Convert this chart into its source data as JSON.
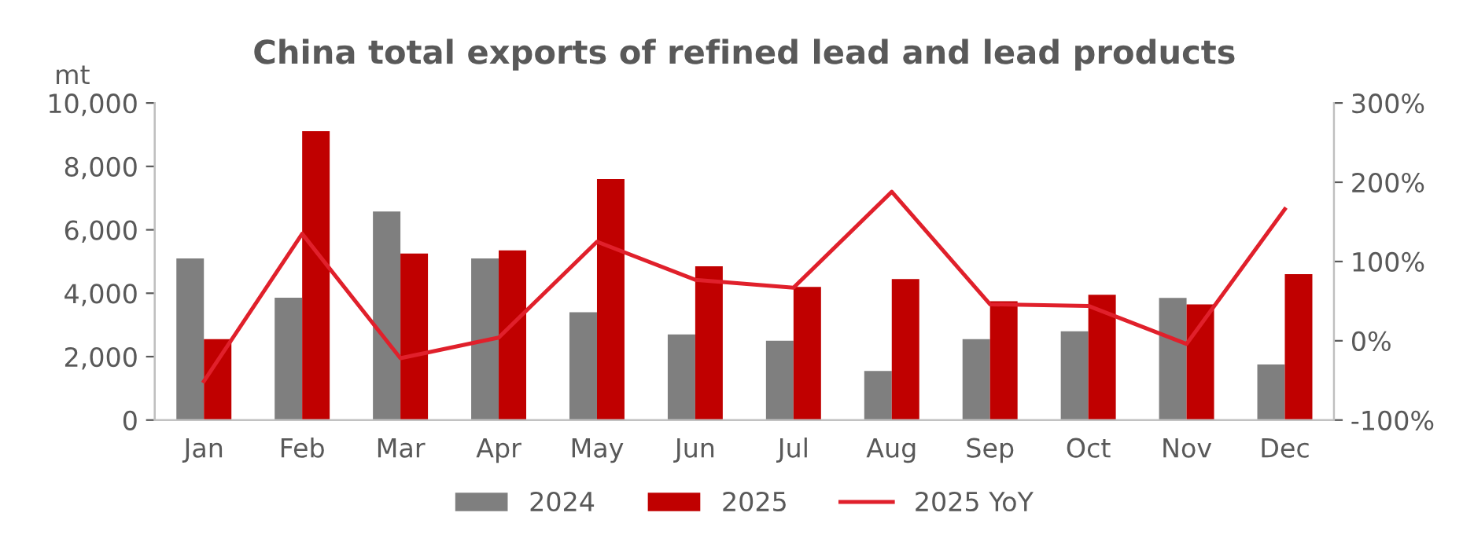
{
  "chart_data": {
    "type": "bar",
    "title": "China total exports of refined lead and lead products",
    "ylabel": "mt",
    "categories": [
      "Jan",
      "Feb",
      "Mar",
      "Apr",
      "May",
      "Jun",
      "Jul",
      "Aug",
      "Sep",
      "Oct",
      "Nov",
      "Dec"
    ],
    "series": [
      {
        "name": "2024",
        "color": "#7f7f7f",
        "values": [
          5100,
          3860,
          6580,
          5100,
          3400,
          2700,
          2500,
          1550,
          2550,
          2800,
          3850,
          1750
        ]
      },
      {
        "name": "2025",
        "color": "#c00000",
        "values": [
          2550,
          9110,
          5250,
          5350,
          7600,
          4850,
          4200,
          4450,
          3750,
          3950,
          3650,
          4600
        ]
      },
      {
        "name": "2025 YoY",
        "type": "line",
        "axis": "y2",
        "color": "#e0202b",
        "values": [
          -51,
          135,
          -22,
          4,
          125,
          77,
          67,
          188,
          46,
          44,
          -4,
          166
        ]
      }
    ],
    "ylim": [
      0,
      10000
    ],
    "yticks": [
      {
        "value": 0,
        "label": "0"
      },
      {
        "value": 2000,
        "label": "2,000"
      },
      {
        "value": 4000,
        "label": "4,000"
      },
      {
        "value": 6000,
        "label": "6,000"
      },
      {
        "value": 8000,
        "label": "8,000"
      },
      {
        "value": 10000,
        "label": "10,000"
      }
    ],
    "y2lim": [
      -100,
      300
    ],
    "y2ticks": [
      {
        "value": -100,
        "label": "-100%"
      },
      {
        "value": 0,
        "label": "0%"
      },
      {
        "value": 100,
        "label": "100%"
      },
      {
        "value": 200,
        "label": "200%"
      },
      {
        "value": 300,
        "label": "300%"
      }
    ],
    "legend": "bottom",
    "grid": false
  }
}
